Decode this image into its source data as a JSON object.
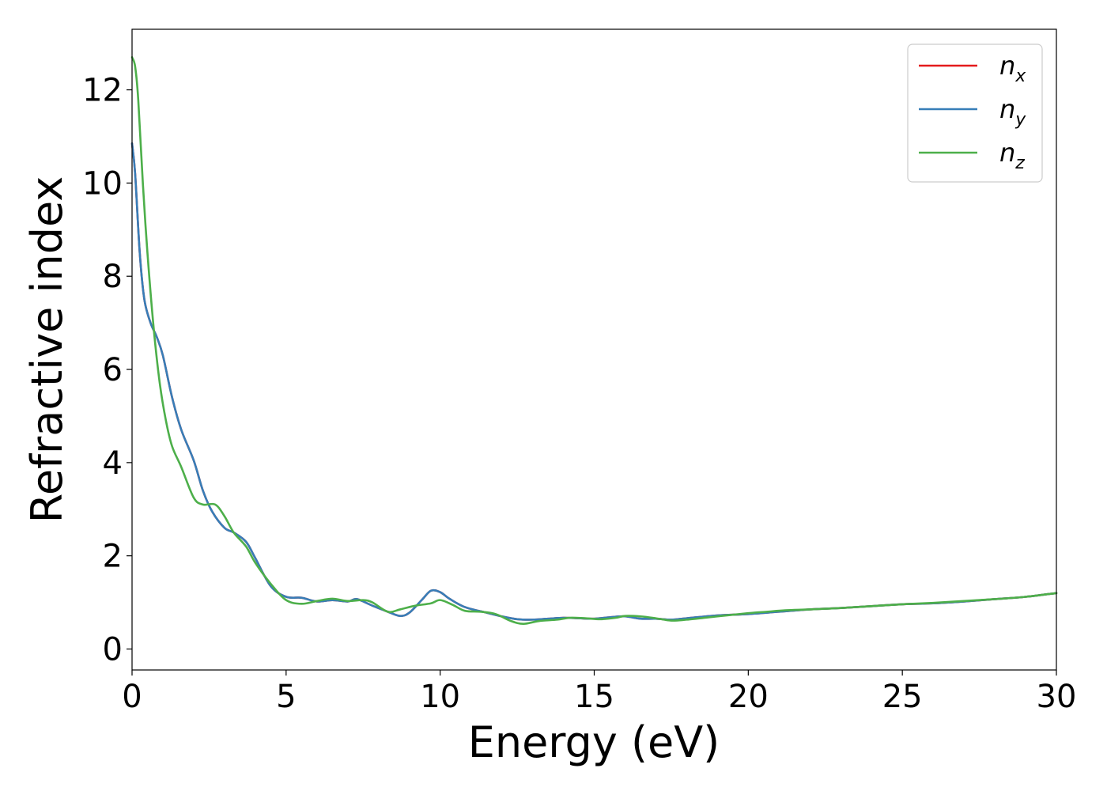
{
  "chart_data": {
    "type": "line",
    "title": "",
    "xlabel": "Energy (eV)",
    "ylabel": "Refractive index",
    "xlim": [
      0,
      30
    ],
    "ylim": [
      -0.45,
      13.3
    ],
    "xticks": [
      0,
      5,
      10,
      15,
      20,
      25,
      30
    ],
    "xtick_labels": [
      "0",
      "5",
      "10",
      "15",
      "20",
      "25",
      "30"
    ],
    "yticks": [
      0,
      2,
      4,
      6,
      8,
      10,
      12
    ],
    "ytick_labels": [
      "0",
      "2",
      "4",
      "6",
      "8",
      "10",
      "12"
    ],
    "grid": false,
    "legend_position": "top-right",
    "series": [
      {
        "name": "n",
        "subscript": "x",
        "color": "#e41a1c",
        "x": [
          0,
          0.1,
          0.25,
          0.4,
          0.6,
          0.8,
          1.0,
          1.3,
          1.6,
          2.0,
          2.3,
          2.6,
          3.0,
          3.3,
          3.7,
          4.0,
          4.5,
          5.0,
          5.5,
          6.0,
          6.5,
          7.0,
          7.3,
          7.8,
          8.3,
          8.7,
          9.0,
          9.4,
          9.7,
          10.0,
          10.3,
          10.8,
          11.5,
          12.0,
          12.5,
          13.0,
          13.5,
          14.0,
          14.5,
          15.0,
          15.5,
          16.0,
          16.5,
          17.0,
          17.5,
          18.0,
          19.0,
          20.0,
          21.0,
          22.0,
          23.0,
          24.0,
          25.0,
          26.0,
          27.0,
          28.0,
          29.0,
          30.0
        ],
        "y": [
          10.85,
          10.2,
          8.5,
          7.5,
          7.0,
          6.7,
          6.3,
          5.4,
          4.7,
          4.05,
          3.4,
          2.95,
          2.6,
          2.5,
          2.3,
          1.95,
          1.35,
          1.12,
          1.1,
          1.02,
          1.05,
          1.02,
          1.07,
          0.93,
          0.8,
          0.71,
          0.78,
          1.05,
          1.25,
          1.22,
          1.08,
          0.9,
          0.78,
          0.7,
          0.64,
          0.63,
          0.65,
          0.67,
          0.66,
          0.65,
          0.68,
          0.7,
          0.65,
          0.65,
          0.63,
          0.66,
          0.72,
          0.75,
          0.8,
          0.85,
          0.88,
          0.92,
          0.96,
          0.98,
          1.02,
          1.07,
          1.12,
          1.2
        ]
      },
      {
        "name": "n",
        "subscript": "y",
        "color": "#377eb8",
        "x": [
          0,
          0.1,
          0.25,
          0.4,
          0.6,
          0.8,
          1.0,
          1.3,
          1.6,
          2.0,
          2.3,
          2.6,
          3.0,
          3.3,
          3.7,
          4.0,
          4.5,
          5.0,
          5.5,
          6.0,
          6.5,
          7.0,
          7.3,
          7.8,
          8.3,
          8.7,
          9.0,
          9.4,
          9.7,
          10.0,
          10.3,
          10.8,
          11.5,
          12.0,
          12.5,
          13.0,
          13.5,
          14.0,
          14.5,
          15.0,
          15.5,
          16.0,
          16.5,
          17.0,
          17.5,
          18.0,
          19.0,
          20.0,
          21.0,
          22.0,
          23.0,
          24.0,
          25.0,
          26.0,
          27.0,
          28.0,
          29.0,
          30.0
        ],
        "y": [
          10.85,
          10.2,
          8.5,
          7.5,
          7.0,
          6.7,
          6.3,
          5.4,
          4.7,
          4.05,
          3.4,
          2.95,
          2.6,
          2.5,
          2.3,
          1.95,
          1.35,
          1.12,
          1.1,
          1.02,
          1.05,
          1.02,
          1.07,
          0.93,
          0.8,
          0.71,
          0.78,
          1.05,
          1.25,
          1.22,
          1.08,
          0.9,
          0.78,
          0.7,
          0.64,
          0.63,
          0.65,
          0.67,
          0.66,
          0.65,
          0.68,
          0.7,
          0.65,
          0.65,
          0.63,
          0.66,
          0.72,
          0.75,
          0.8,
          0.85,
          0.88,
          0.92,
          0.96,
          0.98,
          1.02,
          1.07,
          1.12,
          1.2
        ]
      },
      {
        "name": "n",
        "subscript": "z",
        "color": "#4daf4a",
        "x": [
          0,
          0.1,
          0.2,
          0.35,
          0.5,
          0.7,
          0.9,
          1.1,
          1.3,
          1.6,
          2.0,
          2.3,
          2.7,
          3.0,
          3.3,
          3.7,
          4.0,
          4.5,
          5.0,
          5.5,
          6.0,
          6.5,
          7.0,
          7.5,
          7.8,
          8.3,
          8.7,
          9.2,
          9.7,
          10.0,
          10.4,
          10.8,
          11.3,
          11.8,
          12.3,
          12.7,
          13.2,
          13.8,
          14.2,
          14.7,
          15.2,
          15.7,
          16.0,
          16.5,
          17.0,
          17.5,
          18.0,
          19.0,
          20.0,
          20.6,
          21.2,
          22.0,
          23.0,
          24.0,
          25.0,
          26.0,
          27.0,
          28.0,
          29.0,
          30.0
        ],
        "y": [
          12.7,
          12.5,
          11.8,
          10.0,
          8.5,
          6.9,
          5.7,
          4.9,
          4.35,
          3.9,
          3.25,
          3.1,
          3.1,
          2.85,
          2.5,
          2.2,
          1.85,
          1.4,
          1.05,
          0.97,
          1.03,
          1.08,
          1.03,
          1.05,
          1.0,
          0.8,
          0.85,
          0.93,
          0.98,
          1.05,
          0.95,
          0.82,
          0.8,
          0.75,
          0.6,
          0.54,
          0.6,
          0.63,
          0.67,
          0.66,
          0.64,
          0.67,
          0.71,
          0.7,
          0.66,
          0.61,
          0.63,
          0.7,
          0.77,
          0.8,
          0.83,
          0.85,
          0.88,
          0.92,
          0.96,
          0.99,
          1.03,
          1.07,
          1.12,
          1.2
        ]
      }
    ]
  }
}
